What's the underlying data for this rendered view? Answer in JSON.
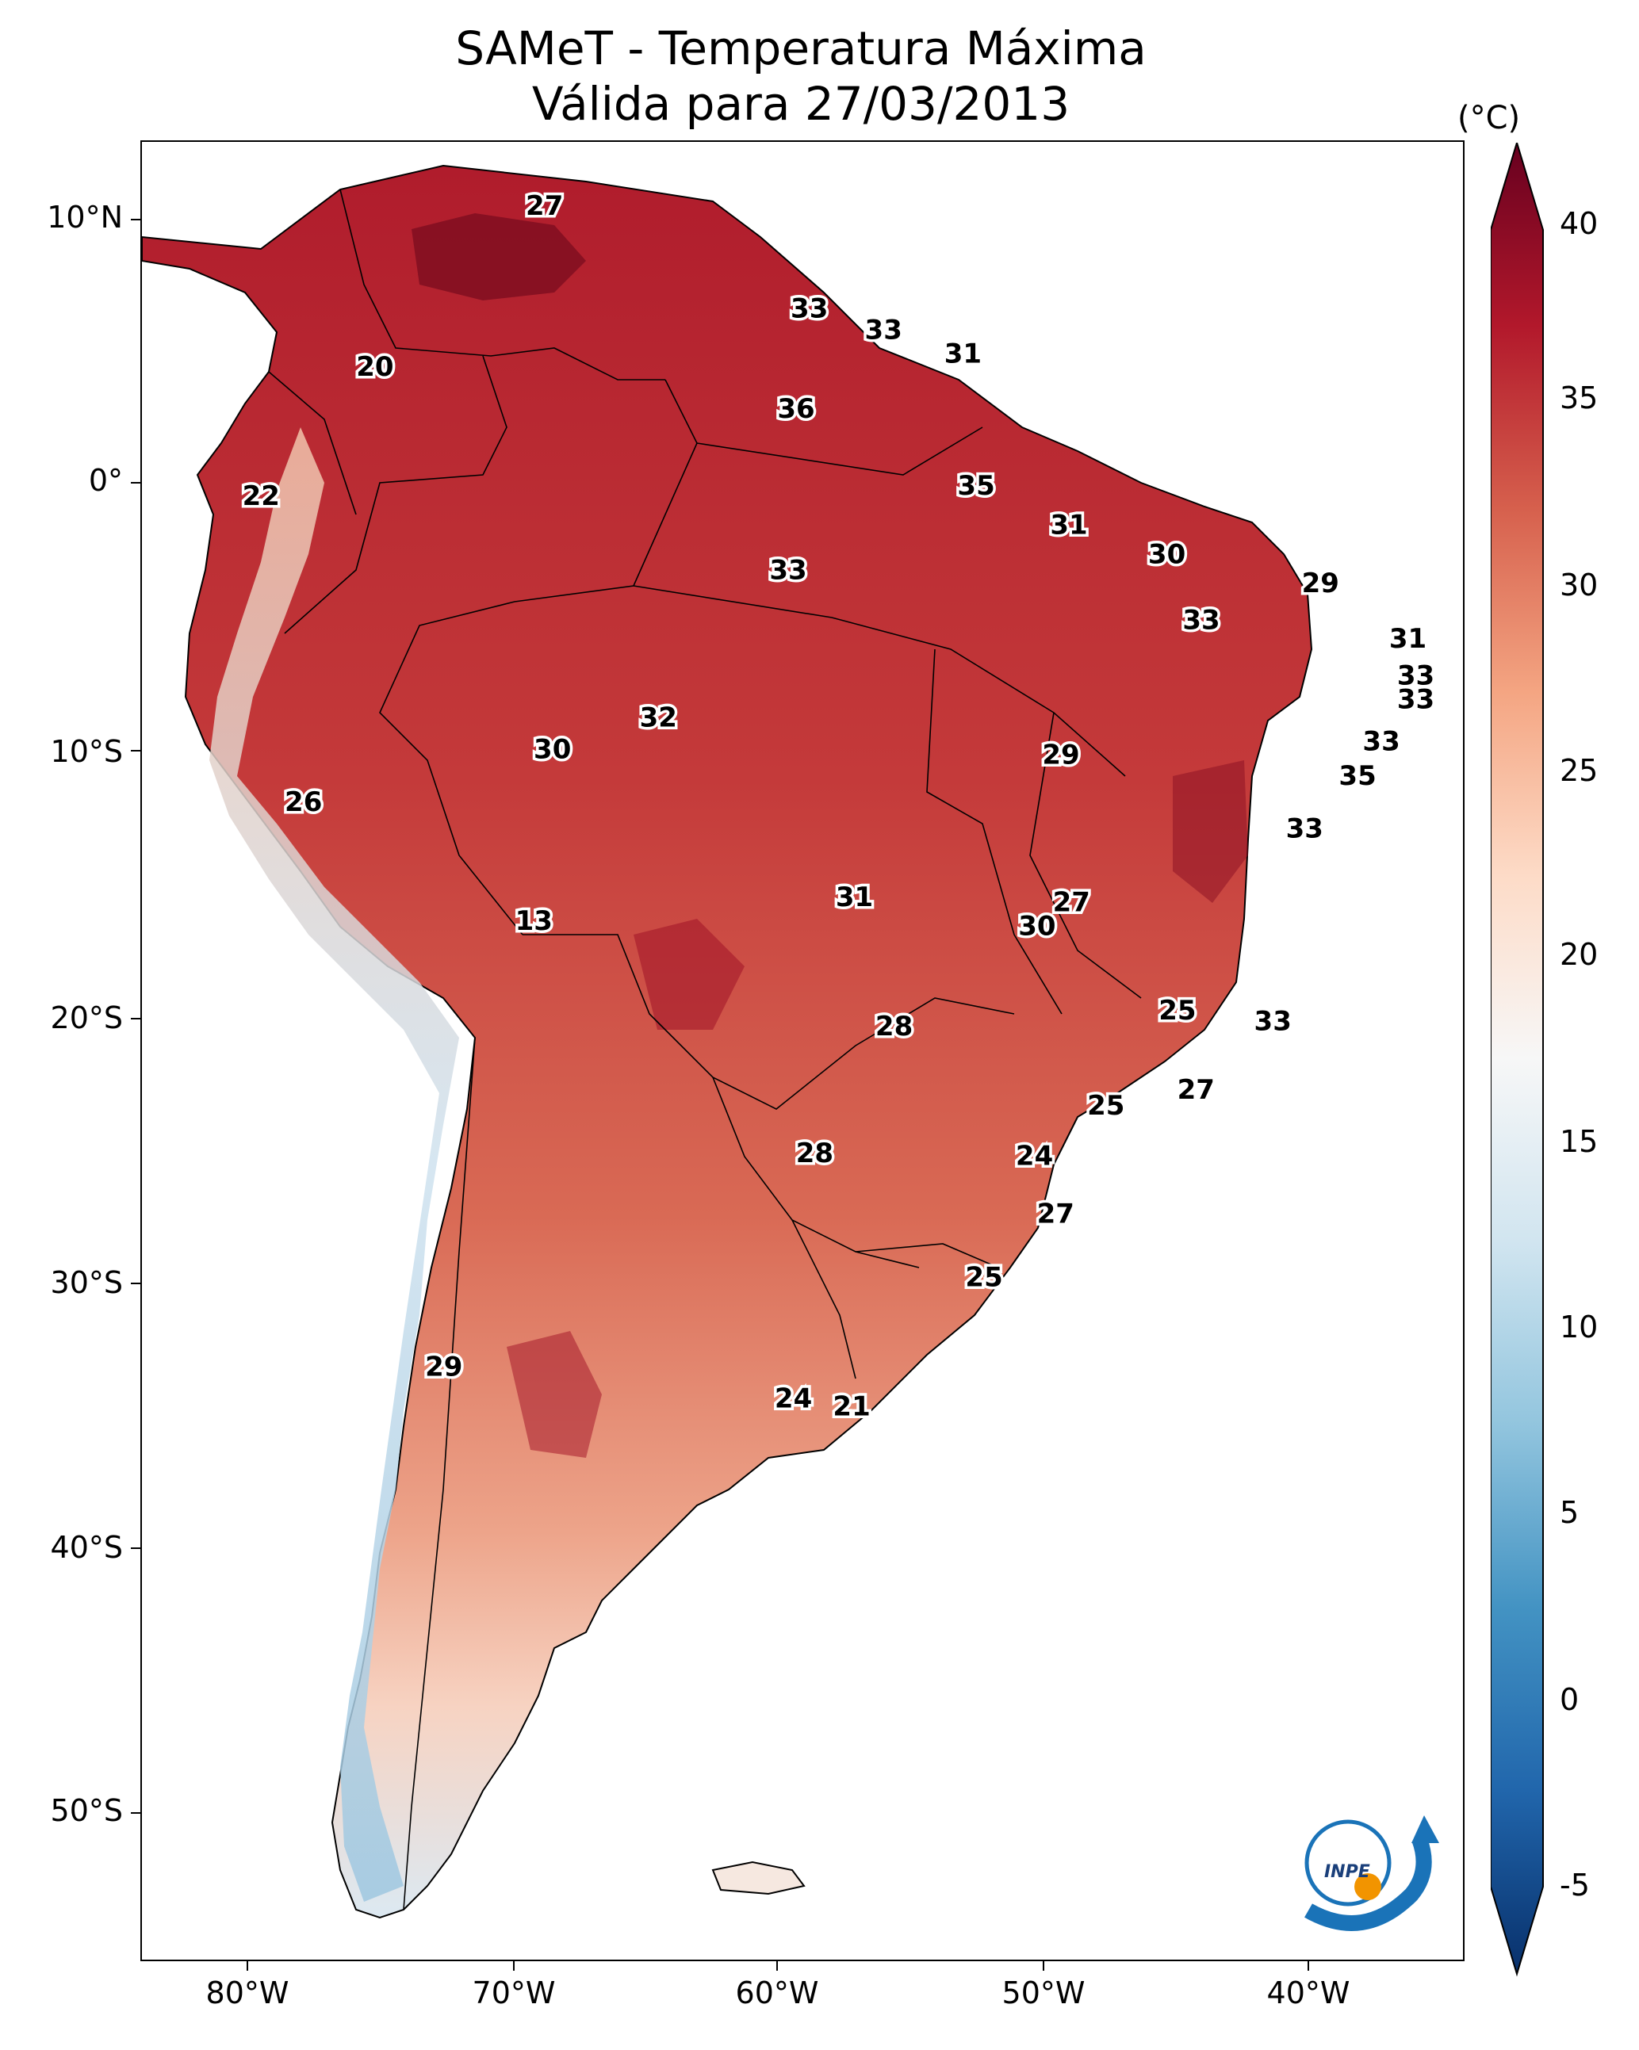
{
  "title": {
    "line1": "SAMeT - Temperatura Máxima",
    "line2": "Válida para 27/03/2013"
  },
  "axes": {
    "lat_labels": [
      "10°N",
      "0°",
      "10°S",
      "20°S",
      "30°S",
      "40°S",
      "50°S"
    ],
    "lon_labels": [
      "80°W",
      "70°W",
      "60°W",
      "50°W",
      "40°W"
    ]
  },
  "colorbar": {
    "unit": "(°C)",
    "ticks": [
      "40",
      "35",
      "30",
      "25",
      "20",
      "15",
      "10",
      "5",
      "0",
      "-5"
    ],
    "range": [
      -7,
      40
    ],
    "colors": [
      "#08306b",
      "#2166ac",
      "#4393c3",
      "#92c5de",
      "#d1e5f0",
      "#f7f7f7",
      "#fddbc7",
      "#f4a582",
      "#d6604d",
      "#b2182b",
      "#67001f"
    ]
  },
  "map_data": {
    "extent": {
      "lon": [
        -83,
        -33
      ],
      "lat": [
        -56,
        13
      ]
    },
    "point_values": [
      {
        "v": "27",
        "lon": -67.8,
        "lat": 10.6
      },
      {
        "v": "33",
        "lon": -57.8,
        "lat": 6.7
      },
      {
        "v": "33",
        "lon": -55.0,
        "lat": 5.9
      },
      {
        "v": "31",
        "lon": -52.0,
        "lat": 5.0
      },
      {
        "v": "20",
        "lon": -74.2,
        "lat": 4.5
      },
      {
        "v": "36",
        "lon": -58.3,
        "lat": 2.9
      },
      {
        "v": "22",
        "lon": -78.5,
        "lat": -0.4
      },
      {
        "v": "35",
        "lon": -51.5,
        "lat": 0.0
      },
      {
        "v": "31",
        "lon": -48.0,
        "lat": -1.5
      },
      {
        "v": "30",
        "lon": -44.3,
        "lat": -2.6
      },
      {
        "v": "33",
        "lon": -58.6,
        "lat": -3.2
      },
      {
        "v": "29",
        "lon": -38.5,
        "lat": -3.7
      },
      {
        "v": "33",
        "lon": -43.0,
        "lat": -5.1
      },
      {
        "v": "31",
        "lon": -35.2,
        "lat": -5.8
      },
      {
        "v": "33",
        "lon": -34.9,
        "lat": -7.2
      },
      {
        "v": "33",
        "lon": -34.9,
        "lat": -8.1
      },
      {
        "v": "32",
        "lon": -63.5,
        "lat": -8.8
      },
      {
        "v": "33",
        "lon": -36.2,
        "lat": -9.7
      },
      {
        "v": "30",
        "lon": -67.5,
        "lat": -10.0
      },
      {
        "v": "29",
        "lon": -48.3,
        "lat": -10.2
      },
      {
        "v": "35",
        "lon": -37.1,
        "lat": -11.0
      },
      {
        "v": "26",
        "lon": -76.9,
        "lat": -12.0
      },
      {
        "v": "33",
        "lon": -39.1,
        "lat": -13.0
      },
      {
        "v": "31",
        "lon": -56.1,
        "lat": -15.6
      },
      {
        "v": "27",
        "lon": -47.9,
        "lat": -15.8
      },
      {
        "v": "30",
        "lon": -49.2,
        "lat": -16.7
      },
      {
        "v": "13",
        "lon": -68.2,
        "lat": -16.5
      },
      {
        "v": "25",
        "lon": -43.9,
        "lat": -19.9
      },
      {
        "v": "33",
        "lon": -40.3,
        "lat": -20.3
      },
      {
        "v": "28",
        "lon": -54.6,
        "lat": -20.5
      },
      {
        "v": "27",
        "lon": -43.2,
        "lat": -22.9
      },
      {
        "v": "25",
        "lon": -46.6,
        "lat": -23.5
      },
      {
        "v": "28",
        "lon": -57.6,
        "lat": -25.3
      },
      {
        "v": "24",
        "lon": -49.3,
        "lat": -25.4
      },
      {
        "v": "27",
        "lon": -48.5,
        "lat": -27.6
      },
      {
        "v": "25",
        "lon": -51.2,
        "lat": -30.0
      },
      {
        "v": "29",
        "lon": -71.6,
        "lat": -33.4
      },
      {
        "v": "24",
        "lon": -58.4,
        "lat": -34.6
      },
      {
        "v": "21",
        "lon": -56.2,
        "lat": -34.9
      }
    ]
  },
  "logo": {
    "text": "INPE"
  }
}
